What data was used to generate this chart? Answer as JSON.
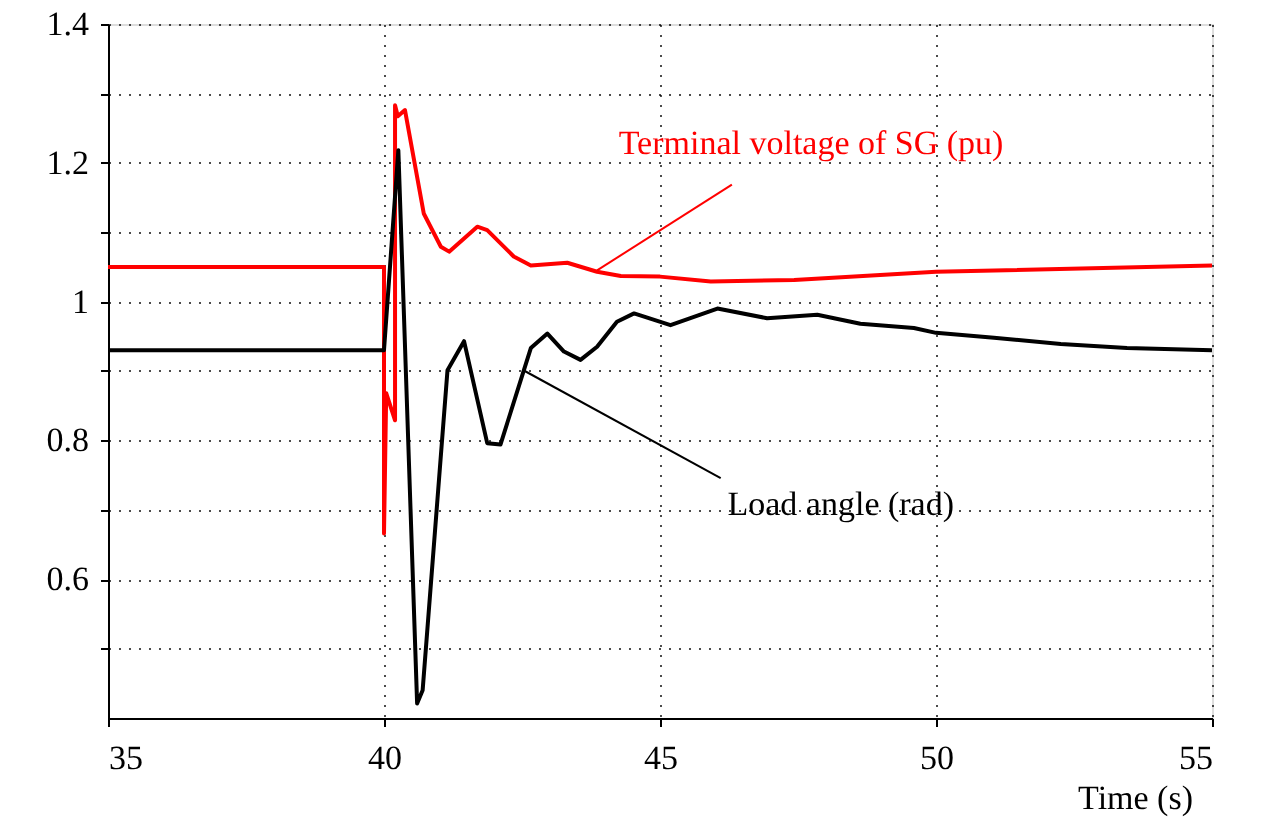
{
  "chart_data": {
    "type": "line",
    "xlabel": "Time (s)",
    "xlim": [
      35,
      55
    ],
    "xticks": [
      35,
      40,
      45,
      50,
      55
    ],
    "ylim": [
      0.4,
      1.4
    ],
    "yticks": [
      {
        "value": 0.5,
        "label": null
      },
      0.6,
      {
        "value": 0.7,
        "label": null
      },
      0.8,
      {
        "value": 0.9,
        "label": null
      },
      1,
      {
        "value": 1.1,
        "label": null
      },
      1.2,
      {
        "value": 1.3,
        "label": null
      },
      1.4
    ],
    "grid": true,
    "line_style": "solid",
    "marker": "none",
    "series": [
      {
        "color": "#ff0000",
        "x": [
          35,
          40.0,
          40.0,
          40.04,
          40.2,
          40.2,
          40.25,
          40.38,
          40.72,
          41.03,
          41.18,
          41.69,
          41.87,
          42.35,
          42.66,
          43.32,
          43.86,
          44.29,
          45.0,
          45.92,
          47.43,
          50,
          55
        ],
        "values": [
          1.05,
          1.05,
          0.666,
          0.868,
          0.829,
          1.283,
          1.267,
          1.276,
          1.127,
          1.079,
          1.072,
          1.108,
          1.103,
          1.065,
          1.052,
          1.056,
          1.043,
          1.037,
          1.036,
          1.029,
          1.031,
          1.043,
          1.052
        ]
      },
      {
        "color": "#000000",
        "x": [
          35,
          40.0,
          40.26,
          40.6,
          40.7,
          41.15,
          41.45,
          41.87,
          42.11,
          42.66,
          42.96,
          43.26,
          43.56,
          43.86,
          44.22,
          44.53,
          45.19,
          46.04,
          46.94,
          47.85,
          48.63,
          49.6,
          50.0,
          51.05,
          52.26,
          53.46,
          55
        ],
        "values": [
          0.93,
          0.93,
          1.218,
          0.421,
          0.44,
          0.901,
          0.943,
          0.796,
          0.794,
          0.933,
          0.954,
          0.928,
          0.916,
          0.935,
          0.971,
          0.983,
          0.966,
          0.99,
          0.976,
          0.981,
          0.968,
          0.962,
          0.955,
          0.948,
          0.939,
          0.933,
          0.93
        ]
      }
    ],
    "annotations": [
      {
        "text": "Terminal voltage of SG (pu)",
        "x": 43.86,
        "y": 1.045
      },
      {
        "text": "Load angle (rad)",
        "x": 42.55,
        "y": 0.9
      }
    ]
  }
}
